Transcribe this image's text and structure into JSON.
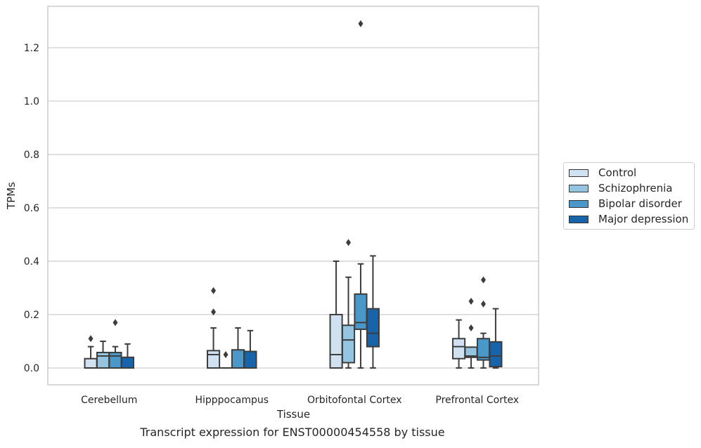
{
  "caption": "Transcript expression for ENST00000454558 by tissue",
  "chart_data": {
    "type": "box",
    "xlabel": "Tissue",
    "ylabel": "TPMs",
    "ylim": [
      -0.063,
      1.355
    ],
    "yticks": [
      0.0,
      0.2,
      0.4,
      0.6,
      0.8,
      1.0,
      1.2
    ],
    "grid": "horizontal",
    "legend_position": "right",
    "categories": [
      "Cerebellum",
      "Hipppocampus",
      "Orbitofontal Cortex",
      "Prefrontal Cortex"
    ],
    "series": [
      {
        "name": "Control",
        "color": "#d0e1f2",
        "boxes": [
          {
            "whisker_low": 0.0,
            "q1": 0.0,
            "median": 0.0,
            "q3": 0.035,
            "whisker_high": 0.08,
            "outliers": [
              0.11
            ]
          },
          {
            "whisker_low": 0.0,
            "q1": 0.0,
            "median": 0.05,
            "q3": 0.065,
            "whisker_high": 0.15,
            "outliers": [
              0.21,
              0.29
            ]
          },
          {
            "whisker_low": 0.0,
            "q1": 0.0,
            "median": 0.05,
            "q3": 0.2,
            "whisker_high": 0.4,
            "outliers": []
          },
          {
            "whisker_low": 0.0,
            "q1": 0.035,
            "median": 0.08,
            "q3": 0.11,
            "whisker_high": 0.18,
            "outliers": []
          }
        ]
      },
      {
        "name": "Schizophrenia",
        "color": "#94c4df",
        "boxes": [
          {
            "whisker_low": 0.0,
            "q1": 0.0,
            "median": 0.045,
            "q3": 0.058,
            "whisker_high": 0.1,
            "outliers": []
          },
          {
            "whisker_low": 0.0,
            "q1": 0.0,
            "median": 0.0,
            "q3": 0.0,
            "whisker_high": 0.0,
            "outliers": [
              0.05
            ]
          },
          {
            "whisker_low": 0.0,
            "q1": 0.02,
            "median": 0.105,
            "q3": 0.16,
            "whisker_high": 0.34,
            "outliers": [
              0.47
            ]
          },
          {
            "whisker_low": 0.0,
            "q1": 0.04,
            "median": 0.045,
            "q3": 0.078,
            "whisker_high": 0.078,
            "outliers": [
              0.15,
              0.25
            ]
          }
        ]
      },
      {
        "name": "Bipolar disorder",
        "color": "#4a98c9",
        "boxes": [
          {
            "whisker_low": 0.0,
            "q1": 0.0,
            "median": 0.045,
            "q3": 0.058,
            "whisker_high": 0.08,
            "outliers": [
              0.17
            ]
          },
          {
            "whisker_low": 0.0,
            "q1": 0.0,
            "median": 0.0,
            "q3": 0.068,
            "whisker_high": 0.15,
            "outliers": []
          },
          {
            "whisker_low": 0.0,
            "q1": 0.145,
            "median": 0.17,
            "q3": 0.277,
            "whisker_high": 0.39,
            "outliers": [
              1.29
            ]
          },
          {
            "whisker_low": 0.0,
            "q1": 0.03,
            "median": 0.04,
            "q3": 0.11,
            "whisker_high": 0.13,
            "outliers": [
              0.24,
              0.33
            ]
          }
        ]
      },
      {
        "name": "Major depression",
        "color": "#1764ab",
        "boxes": [
          {
            "whisker_low": 0.0,
            "q1": 0.0,
            "median": 0.0,
            "q3": 0.04,
            "whisker_high": 0.09,
            "outliers": []
          },
          {
            "whisker_low": 0.0,
            "q1": 0.0,
            "median": 0.0,
            "q3": 0.062,
            "whisker_high": 0.14,
            "outliers": []
          },
          {
            "whisker_low": 0.0,
            "q1": 0.08,
            "median": 0.13,
            "q3": 0.222,
            "whisker_high": 0.42,
            "outliers": []
          },
          {
            "whisker_low": 0.0,
            "q1": 0.005,
            "median": 0.045,
            "q3": 0.098,
            "whisker_high": 0.222,
            "outliers": []
          }
        ]
      }
    ]
  }
}
